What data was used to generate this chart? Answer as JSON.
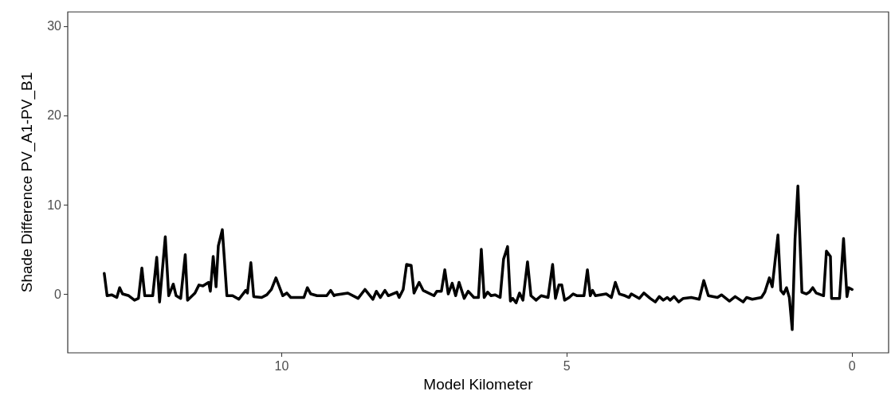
{
  "chart_data": {
    "type": "line",
    "xlabel": "Model Kilometer",
    "ylabel": "Shade Difference PV_A1-PV_B1",
    "xlim": [
      13.75,
      -0.64
    ],
    "xticks": [
      10,
      5,
      0
    ],
    "ylim": [
      -6.6,
      31.6
    ],
    "yticks": [
      0,
      10,
      20,
      30
    ],
    "grid": false,
    "marker": "none",
    "line_style": "solid",
    "series": [
      {
        "color": "#000000",
        "x": [
          13.11,
          13.06,
          12.98,
          12.89,
          12.84,
          12.79,
          12.68,
          12.58,
          12.51,
          12.45,
          12.4,
          12.26,
          12.19,
          12.14,
          12.04,
          11.98,
          11.9,
          11.85,
          11.77,
          11.69,
          11.65,
          11.52,
          11.45,
          11.38,
          11.28,
          11.25,
          11.2,
          11.15,
          11.11,
          11.04,
          10.96,
          10.86,
          10.75,
          10.63,
          10.6,
          10.54,
          10.49,
          10.35,
          10.26,
          10.18,
          10.1,
          9.98,
          9.91,
          9.84,
          9.66,
          9.61,
          9.55,
          9.49,
          9.38,
          9.21,
          9.14,
          9.08,
          9.05,
          8.84,
          8.66,
          8.54,
          8.4,
          8.34,
          8.27,
          8.19,
          8.13,
          7.98,
          7.94,
          7.87,
          7.81,
          7.73,
          7.68,
          7.59,
          7.52,
          7.33,
          7.28,
          7.2,
          7.14,
          7.08,
          7.01,
          6.95,
          6.89,
          6.8,
          6.73,
          6.63,
          6.55,
          6.5,
          6.45,
          6.39,
          6.33,
          6.26,
          6.17,
          6.11,
          6.04,
          5.99,
          5.95,
          5.89,
          5.83,
          5.77,
          5.69,
          5.63,
          5.54,
          5.45,
          5.33,
          5.25,
          5.2,
          5.14,
          5.09,
          5.04,
          4.96,
          4.89,
          4.82,
          4.7,
          4.64,
          4.59,
          4.55,
          4.5,
          4.31,
          4.22,
          4.15,
          4.08,
          3.98,
          3.91,
          3.87,
          3.73,
          3.65,
          3.54,
          3.45,
          3.38,
          3.31,
          3.24,
          3.19,
          3.12,
          3.04,
          2.96,
          2.82,
          2.68,
          2.6,
          2.52,
          2.36,
          2.29,
          2.15,
          2.05,
          1.91,
          1.85,
          1.75,
          1.59,
          1.53,
          1.45,
          1.4,
          1.3,
          1.25,
          1.2,
          1.15,
          1.1,
          1.05,
          1.0,
          0.95,
          0.88,
          0.8,
          0.75,
          0.69,
          0.63,
          0.5,
          0.45,
          0.38,
          0.36,
          0.22,
          0.15,
          0.09,
          0.06,
          0.0
        ],
        "values": [
          2.3,
          -0.2,
          -0.1,
          -0.4,
          0.7,
          0.0,
          -0.2,
          -0.7,
          -0.5,
          2.9,
          -0.2,
          -0.2,
          4.1,
          -0.9,
          6.4,
          -0.2,
          1.1,
          -0.2,
          -0.5,
          4.4,
          -0.7,
          0.1,
          1.0,
          0.9,
          1.3,
          0.3,
          4.2,
          0.8,
          5.4,
          7.2,
          -0.2,
          -0.2,
          -0.6,
          0.4,
          0.1,
          3.5,
          -0.3,
          -0.4,
          -0.1,
          0.5,
          1.8,
          -0.2,
          0.1,
          -0.4,
          -0.4,
          -0.4,
          0.7,
          0.0,
          -0.2,
          -0.2,
          0.4,
          -0.2,
          -0.1,
          0.1,
          -0.5,
          0.5,
          -0.6,
          0.3,
          -0.4,
          0.4,
          -0.2,
          0.2,
          -0.4,
          0.5,
          3.3,
          3.2,
          0.1,
          1.3,
          0.4,
          -0.2,
          0.3,
          0.3,
          2.7,
          0.0,
          1.2,
          -0.2,
          1.3,
          -0.5,
          0.3,
          -0.4,
          -0.4,
          5.0,
          -0.4,
          0.2,
          -0.2,
          -0.1,
          -0.4,
          3.9,
          5.3,
          -0.8,
          -0.5,
          -1.0,
          0.1,
          -0.7,
          3.6,
          -0.2,
          -0.7,
          -0.2,
          -0.4,
          3.3,
          -0.5,
          1.0,
          1.0,
          -0.7,
          -0.4,
          0.0,
          -0.2,
          -0.2,
          2.7,
          -0.2,
          0.4,
          -0.2,
          0.0,
          -0.4,
          1.3,
          0.0,
          -0.2,
          -0.4,
          0.0,
          -0.5,
          0.1,
          -0.5,
          -0.9,
          -0.3,
          -0.7,
          -0.4,
          -0.7,
          -0.3,
          -0.9,
          -0.5,
          -0.4,
          -0.6,
          1.5,
          -0.2,
          -0.4,
          -0.1,
          -0.8,
          -0.3,
          -0.9,
          -0.4,
          -0.6,
          -0.4,
          0.2,
          1.8,
          0.8,
          6.6,
          0.4,
          0.0,
          0.7,
          -0.4,
          -4.0,
          6.2,
          12.1,
          0.2,
          0.0,
          0.2,
          0.7,
          0.1,
          -0.2,
          4.8,
          4.2,
          -0.5,
          -0.5,
          6.2,
          -0.3,
          0.7,
          0.5
        ]
      }
    ]
  }
}
